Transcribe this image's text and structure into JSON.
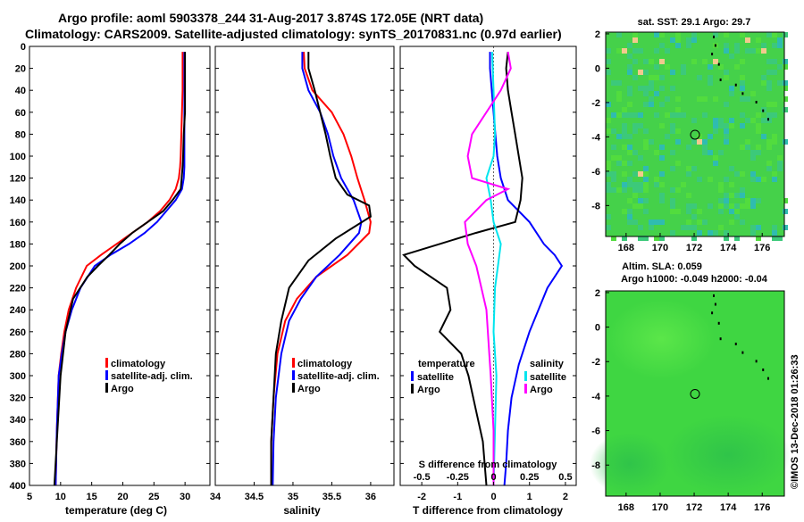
{
  "title": {
    "line1": "Argo profile: aoml 5903378_244 31-Aug-2017 3.874S 172.05E (NRT data)",
    "line2": "Climatology: CARS2009. Satellite-adjusted climatology: synTS_20170831.nc (0.97d earlier)"
  },
  "colors": {
    "climatology": "#ff0000",
    "satellite": "#0000ff",
    "argo": "#000000",
    "sat_salinity": "#00e5ee",
    "argo_salinity": "#ff00ff"
  },
  "depth_ticks": [
    0,
    20,
    40,
    60,
    80,
    100,
    120,
    140,
    160,
    180,
    200,
    220,
    240,
    260,
    280,
    300,
    320,
    340,
    360,
    380,
    400
  ],
  "chart_data": [
    {
      "type": "line",
      "id": "temperature",
      "xlabel": "temperature (deg C)",
      "ylabel": "",
      "xlim": [
        5,
        34
      ],
      "ylim": [
        0,
        400
      ],
      "y_reversed": true,
      "xticks": [
        5,
        10,
        15,
        20,
        25,
        30
      ],
      "legend": [
        "climatology",
        "satellite-adj. clim.",
        "Argo"
      ],
      "legend_position": "bottom-right",
      "series": [
        {
          "name": "climatology",
          "color": "#ff0000",
          "x": [
            29.6,
            29.6,
            29.6,
            29.5,
            29.4,
            29.3,
            29.2,
            29.0,
            28.5,
            27.5,
            26.0,
            24.0,
            21.5,
            19.0,
            16.5,
            14.2,
            12.5,
            11.3,
            10.6,
            10.1,
            9.7,
            9.4,
            9.2
          ],
          "y": [
            5,
            20,
            40,
            60,
            80,
            100,
            110,
            120,
            130,
            140,
            150,
            160,
            170,
            180,
            190,
            200,
            220,
            240,
            260,
            280,
            300,
            350,
            400
          ]
        },
        {
          "name": "satellite-adj. clim.",
          "color": "#0000ff",
          "x": [
            29.9,
            29.9,
            29.9,
            29.9,
            29.9,
            29.9,
            29.9,
            29.8,
            29.5,
            28.5,
            27.0,
            25.5,
            23.5,
            21.0,
            18.0,
            15.5,
            13.2,
            11.8,
            10.8,
            10.2,
            9.7,
            9.4,
            9.2
          ],
          "y": [
            5,
            20,
            40,
            60,
            80,
            100,
            110,
            120,
            130,
            140,
            150,
            160,
            170,
            180,
            190,
            200,
            220,
            240,
            260,
            280,
            300,
            350,
            400
          ]
        },
        {
          "name": "Argo",
          "color": "#000000",
          "x": [
            30.0,
            30.0,
            30.0,
            30.0,
            29.8,
            29.7,
            29.6,
            29.3,
            28.0,
            26.5,
            24.0,
            21.5,
            19.5,
            17.8,
            16.0,
            14.3,
            12.0,
            10.8,
            10.0,
            9.5,
            9.0
          ],
          "y": [
            5,
            20,
            40,
            60,
            80,
            100,
            110,
            130,
            140,
            150,
            160,
            170,
            180,
            190,
            200,
            210,
            230,
            260,
            300,
            350,
            400
          ]
        }
      ]
    },
    {
      "type": "line",
      "id": "salinity",
      "xlabel": "salinity",
      "ylabel": "",
      "xlim": [
        34.0,
        36.3
      ],
      "ylim": [
        0,
        400
      ],
      "y_reversed": true,
      "xticks": [
        34,
        34.5,
        35,
        35.5,
        36
      ],
      "legend": [
        "climatology",
        "satellite-adj. clim.",
        "Argo"
      ],
      "legend_position": "bottom-right",
      "series": [
        {
          "name": "climatology",
          "color": "#ff0000",
          "x": [
            35.14,
            35.15,
            35.25,
            35.5,
            35.65,
            35.75,
            35.83,
            35.92,
            36.0,
            35.98,
            35.7,
            35.3,
            35.05,
            34.9,
            34.8,
            34.75,
            34.72,
            34.72
          ],
          "y": [
            5,
            20,
            40,
            60,
            80,
            100,
            120,
            140,
            160,
            170,
            190,
            210,
            230,
            250,
            280,
            320,
            360,
            400
          ]
        },
        {
          "name": "satellite-adj. clim.",
          "color": "#0000ff",
          "x": [
            35.12,
            35.12,
            35.2,
            35.35,
            35.45,
            35.52,
            35.62,
            35.78,
            35.88,
            35.85,
            35.6,
            35.3,
            35.1,
            34.95,
            34.85,
            34.78,
            34.75,
            34.74
          ],
          "y": [
            5,
            20,
            40,
            60,
            80,
            100,
            120,
            140,
            160,
            170,
            190,
            210,
            230,
            250,
            280,
            320,
            360,
            400
          ]
        },
        {
          "name": "Argo",
          "color": "#000000",
          "x": [
            35.2,
            35.2,
            35.28,
            35.35,
            35.42,
            35.48,
            35.55,
            35.7,
            35.98,
            36.0,
            35.55,
            35.2,
            34.95,
            34.85,
            34.78,
            34.75,
            34.72,
            34.72
          ],
          "y": [
            5,
            20,
            40,
            60,
            80,
            100,
            120,
            135,
            145,
            155,
            175,
            195,
            220,
            250,
            280,
            320,
            360,
            400
          ]
        }
      ]
    },
    {
      "type": "line",
      "id": "difference",
      "xlabel": "T difference from climatology",
      "top_label": "S difference from climatology",
      "xlim": [
        -2.6,
        2.3
      ],
      "ylim": [
        0,
        400
      ],
      "y_reversed": true,
      "xticks": [
        -2,
        -1,
        0,
        1,
        2
      ],
      "top_ticks": [
        "-0.5",
        "-0.25",
        "0",
        "0.25",
        "0.5"
      ],
      "legend_temperature": {
        "heading": "temperature",
        "items": [
          "satellite",
          "Argo"
        ]
      },
      "legend_salinity": {
        "heading": "salinity",
        "items": [
          "satellite",
          "Argo"
        ]
      },
      "series": [
        {
          "name": "T satellite",
          "color": "#0000ff",
          "x": [
            -0.1,
            -0.1,
            -0.05,
            0.0,
            0.05,
            0.1,
            0.2,
            0.4,
            1.0,
            1.4,
            1.7,
            1.9,
            1.5,
            1.0,
            0.7,
            0.5,
            0.4,
            0.35,
            0.3
          ],
          "y": [
            5,
            20,
            40,
            60,
            80,
            100,
            120,
            140,
            160,
            180,
            190,
            200,
            220,
            260,
            290,
            320,
            350,
            380,
            400
          ]
        },
        {
          "name": "T Argo",
          "color": "#000000",
          "x": [
            0.4,
            0.35,
            0.4,
            0.5,
            0.6,
            0.7,
            0.8,
            0.75,
            0.6,
            -0.5,
            -1.5,
            -2.5,
            -2.2,
            -1.3,
            -1.2,
            -1.5,
            -0.9,
            -0.7,
            -0.5,
            -0.3,
            -0.2
          ],
          "y": [
            5,
            20,
            40,
            60,
            80,
            100,
            120,
            140,
            160,
            170,
            180,
            190,
            200,
            220,
            240,
            260,
            280,
            300,
            330,
            360,
            400
          ]
        }
      ],
      "salinity_series": [
        {
          "name": "S satellite",
          "color": "#00e5ee",
          "x": [
            -0.01,
            0.0,
            0.01,
            0.0,
            -0.05,
            -0.02,
            0.0,
            0.05,
            0.03,
            0.01,
            0.0,
            0.02,
            0.01,
            0.0
          ],
          "y": [
            5,
            40,
            80,
            100,
            120,
            140,
            160,
            180,
            200,
            220,
            260,
            300,
            350,
            400
          ]
        },
        {
          "name": "S Argo",
          "color": "#ff00ff",
          "x": [
            0.1,
            0.12,
            0.05,
            -0.05,
            -0.15,
            -0.18,
            -0.15,
            0.1,
            -0.05,
            -0.2,
            -0.18,
            -0.12,
            -0.05,
            -0.02,
            0.0,
            0.0
          ],
          "y": [
            5,
            20,
            40,
            60,
            80,
            100,
            120,
            130,
            140,
            160,
            180,
            200,
            240,
            300,
            350,
            400
          ]
        }
      ]
    },
    {
      "type": "heatmap",
      "id": "sst_map",
      "title": "sat. SST: 29.1  Argo: 29.7",
      "xticks": [
        168,
        170,
        172,
        174,
        176
      ],
      "yticks": [
        2,
        0,
        -2,
        -4,
        -6,
        -8
      ],
      "xlim": [
        166.8,
        177.3
      ],
      "ylim": [
        -9.8,
        2.1
      ],
      "argo_position": [
        172.05,
        -3.874
      ]
    },
    {
      "type": "heatmap",
      "id": "sla_map",
      "title_line1": "Altim. SLA: 0.059",
      "title_line2": "Argo h1000: -0.049 h2000: -0.04",
      "xticks": [
        168,
        170,
        172,
        174,
        176
      ],
      "yticks": [
        2,
        0,
        -2,
        -4,
        -6,
        -8
      ],
      "xlim": [
        166.8,
        177.3
      ],
      "ylim": [
        -9.8,
        2.1
      ],
      "argo_position": [
        172.05,
        -3.874
      ]
    }
  ],
  "credit": "©IMOS 13-Dec-2018 01:26:33"
}
